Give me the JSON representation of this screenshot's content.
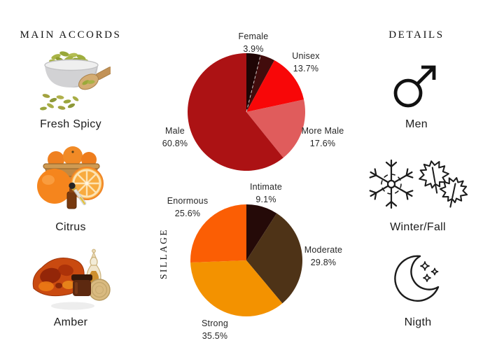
{
  "page": {
    "background": "#ffffff",
    "text_color": "#1f1f1f"
  },
  "left_panel": {
    "title": "MAIN ACCORDS",
    "accords": [
      {
        "label": "Fresh Spicy",
        "icon": "cardamom-seeds-bowl-image"
      },
      {
        "label": "Citrus",
        "icon": "oranges-basket-image"
      },
      {
        "label": "Amber",
        "icon": "amber-stone-jars-image"
      }
    ]
  },
  "right_panel": {
    "title": "DETAILS",
    "details": [
      {
        "label": "Men",
        "icon": "male-symbol-icon"
      },
      {
        "label": "Winter/Fall",
        "icon": "snowflake-maple-leaves-icon"
      },
      {
        "label": "Nigth",
        "icon": "crescent-moon-stars-icon"
      }
    ]
  },
  "chart_data": [
    {
      "type": "pie",
      "name": "gender-votes",
      "start_angle_deg": 0,
      "direction": "clockwise-from-top",
      "slices": [
        {
          "label": "Female",
          "value": 3.9,
          "color": "#1f0505"
        },
        {
          "label": "",
          "value": 4.0,
          "color": "#420c0c"
        },
        {
          "label": "Unisex",
          "value": 13.7,
          "color": "#f80708"
        },
        {
          "label": "More Male",
          "value": 17.6,
          "color": "#e05c5c"
        },
        {
          "label": "Male",
          "value": 60.8,
          "color": "#ac1214"
        }
      ]
    },
    {
      "type": "pie",
      "name": "sillage-votes",
      "axis_label": "SILLAGE",
      "start_angle_deg": 0,
      "direction": "clockwise-from-top",
      "slices": [
        {
          "label": "Intimate",
          "value": 9.1,
          "color": "#250a08"
        },
        {
          "label": "Moderate",
          "value": 29.8,
          "color": "#4e3317"
        },
        {
          "label": "Strong",
          "value": 35.5,
          "color": "#f39200"
        },
        {
          "label": "Enormous",
          "value": 25.6,
          "color": "#fb5e04"
        }
      ]
    }
  ]
}
